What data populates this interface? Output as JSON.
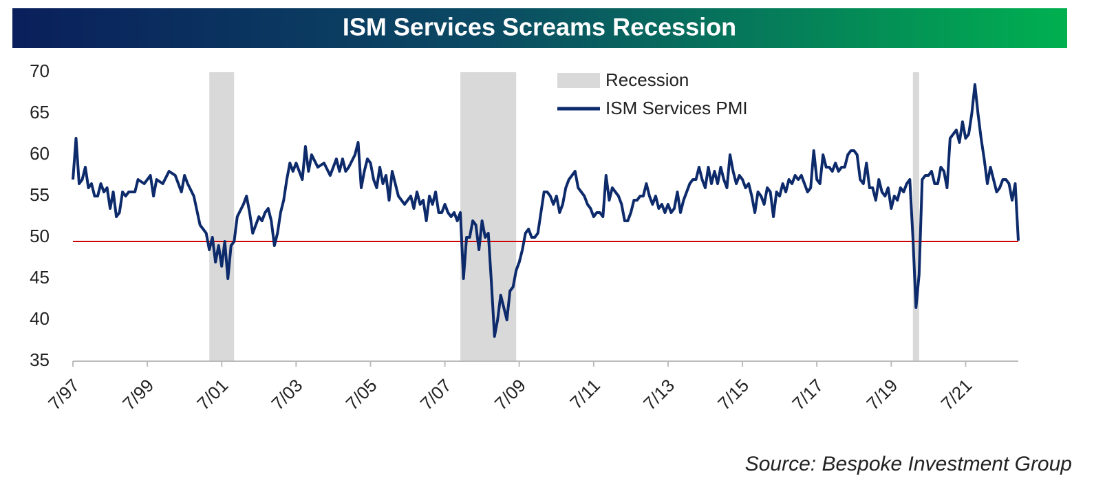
{
  "chart_data": {
    "type": "line",
    "title": "ISM Services Screams Recession",
    "source": "Source: Bespoke Investment Group",
    "x": [
      "7/97",
      "8/97",
      "9/97",
      "10/97",
      "11/97",
      "12/97",
      "1/98",
      "2/98",
      "3/98",
      "4/98",
      "5/98",
      "6/98",
      "7/98",
      "8/98",
      "9/98",
      "10/98",
      "11/98",
      "12/98",
      "1/99",
      "3/99",
      "4/99",
      "6/99",
      "8/99",
      "9/99",
      "10/99",
      "12/99",
      "2/00",
      "4/00",
      "6/00",
      "7/00",
      "8/00",
      "10/00",
      "12/00",
      "2/01",
      "3/01",
      "4/01",
      "5/01",
      "6/01",
      "7/01",
      "8/01",
      "9/01",
      "10/01",
      "11/01",
      "12/01",
      "2/02",
      "3/02",
      "4/02",
      "5/02",
      "6/02",
      "7/02",
      "8/02",
      "9/02",
      "10/02",
      "11/02",
      "12/02",
      "1/03",
      "2/03",
      "3/03",
      "4/03",
      "5/03",
      "6/03",
      "7/03",
      "8/03",
      "9/03",
      "10/03",
      "11/03",
      "12/03",
      "2/04",
      "4/04",
      "6/04",
      "8/04",
      "9/04",
      "10/04",
      "11/04",
      "12/04",
      "2/05",
      "3/05",
      "4/05",
      "5/05",
      "6/05",
      "7/05",
      "8/05",
      "9/05",
      "10/05",
      "11/05",
      "12/05",
      "1/06",
      "2/06",
      "3/06",
      "4/06",
      "5/06",
      "6/06",
      "8/06",
      "9/06",
      "10/06",
      "11/06",
      "12/06",
      "1/07",
      "2/07",
      "3/07",
      "4/07",
      "5/07",
      "6/07",
      "7/07",
      "8/07",
      "9/07",
      "10/07",
      "11/07",
      "12/07",
      "1/08",
      "2/08",
      "3/08",
      "4/08",
      "5/08",
      "6/08",
      "7/08",
      "8/08",
      "9/08",
      "10/08",
      "11/08",
      "12/08",
      "1/09",
      "2/09",
      "3/09",
      "4/09",
      "5/09",
      "6/09",
      "7/09",
      "8/09",
      "9/09",
      "10/09",
      "11/09",
      "12/09",
      "1/10",
      "2/10",
      "3/10",
      "4/10",
      "5/10",
      "6/10",
      "7/10",
      "8/10",
      "9/10",
      "10/10",
      "11/10",
      "12/10",
      "1/11",
      "2/11",
      "3/11",
      "4/11",
      "5/11",
      "6/11",
      "7/11",
      "8/11",
      "9/11",
      "10/11",
      "11/11",
      "12/11",
      "1/12",
      "2/12",
      "3/12",
      "4/12",
      "5/12",
      "6/12",
      "7/12",
      "8/12",
      "9/12",
      "10/12",
      "11/12",
      "12/12",
      "1/13",
      "2/13",
      "3/13",
      "4/13",
      "5/13",
      "6/13",
      "7/13",
      "8/13",
      "9/13",
      "10/13",
      "11/13",
      "12/13",
      "1/14",
      "2/14",
      "3/14",
      "4/14",
      "5/14",
      "6/14",
      "7/14",
      "8/14",
      "9/14",
      "10/14",
      "11/14",
      "12/14",
      "1/15",
      "2/15",
      "3/15",
      "4/15",
      "5/15",
      "6/15",
      "7/15",
      "8/15",
      "9/15",
      "10/15",
      "11/15",
      "12/15",
      "1/16",
      "2/16",
      "3/16",
      "4/16",
      "5/16",
      "6/16",
      "7/16",
      "8/16",
      "9/16",
      "10/16",
      "11/16",
      "12/16",
      "1/17",
      "2/17",
      "3/17",
      "4/17",
      "5/17",
      "6/17",
      "7/17",
      "8/17",
      "9/17",
      "10/17",
      "11/17",
      "12/17",
      "1/18",
      "2/18",
      "3/18",
      "4/18",
      "5/18",
      "6/18",
      "7/18",
      "8/18",
      "9/18",
      "10/18",
      "11/18",
      "12/18",
      "1/19",
      "2/19",
      "3/19",
      "4/19",
      "5/19",
      "6/19",
      "7/19",
      "8/19",
      "9/19",
      "10/19",
      "11/19",
      "12/19",
      "1/20",
      "2/20",
      "3/20",
      "4/20",
      "5/20",
      "6/20",
      "7/20",
      "8/20",
      "9/20",
      "10/20",
      "11/20",
      "12/20",
      "1/21",
      "2/21",
      "3/21",
      "4/21",
      "5/21",
      "6/21",
      "7/21",
      "8/21",
      "9/21",
      "10/21",
      "11/21",
      "12/21",
      "1/22",
      "2/22",
      "3/22",
      "4/22",
      "5/22",
      "6/22",
      "7/22",
      "8/22",
      "9/22",
      "10/22",
      "11/22",
      "12/22"
    ],
    "series": [
      {
        "name": "ISM Services PMI",
        "color": "#0d2a6b",
        "values": [
          57,
          62,
          56.5,
          57,
          58.5,
          56,
          56.5,
          55,
          55,
          56.5,
          55.5,
          56,
          53.5,
          55.5,
          52.5,
          53,
          55.5,
          55,
          55.5,
          55.5,
          57,
          56.5,
          57.5,
          55,
          57,
          56.5,
          58,
          57.5,
          55.5,
          57.5,
          56.5,
          55,
          51.5,
          50.5,
          48.5,
          50,
          47,
          49,
          46.5,
          49.5,
          45,
          49,
          49.5,
          52.5,
          54,
          55,
          53,
          50.5,
          51.5,
          52.5,
          52,
          53,
          53.5,
          52,
          49,
          50.5,
          53,
          54.5,
          57,
          59,
          58,
          59,
          58,
          57,
          61,
          58,
          60,
          58.5,
          59,
          57.5,
          59.5,
          58,
          59.5,
          58,
          58.5,
          60,
          61.5,
          56,
          58,
          59.5,
          59,
          57,
          56,
          58.5,
          56.5,
          57.5,
          54.5,
          58,
          56.5,
          55,
          54.5,
          54,
          55,
          53.5,
          55.5,
          54,
          54.5,
          52,
          55,
          54,
          55.5,
          53,
          53,
          54,
          53,
          52.5,
          53,
          52,
          53,
          45,
          50,
          50,
          52,
          51.5,
          48.5,
          52,
          50,
          50.5,
          44.5,
          38,
          40,
          43,
          41.5,
          40,
          43.5,
          44,
          46,
          47,
          48.5,
          50.5,
          51,
          50,
          50,
          50.5,
          53,
          55.5,
          55.5,
          55,
          54,
          55,
          53,
          54,
          56,
          57,
          57.5,
          58,
          56,
          55.5,
          55,
          54,
          53.5,
          52.5,
          53,
          53,
          52.5,
          57.5,
          54.5,
          56,
          55.5,
          55,
          54,
          52,
          52,
          53,
          54.5,
          54.5,
          55,
          55,
          56.5,
          55,
          54,
          55,
          53.5,
          54,
          53,
          54,
          53,
          53.5,
          55.5,
          53,
          54.5,
          55.5,
          56.5,
          57,
          57,
          58.5,
          57,
          56,
          58.5,
          56.5,
          58,
          56.5,
          58.5,
          57,
          56,
          60,
          58,
          56.5,
          57.5,
          57,
          56,
          56.5,
          55,
          53,
          55.5,
          55,
          54,
          56,
          55.5,
          52.5,
          55.5,
          55,
          56.5,
          55.5,
          57,
          56.5,
          57.5,
          57,
          57.5,
          56.5,
          55.5,
          56,
          60.5,
          57,
          56.5,
          60,
          58.5,
          58.5,
          58,
          59,
          58,
          58.5,
          58.5,
          60,
          60.5,
          60.5,
          60,
          57,
          56.5,
          59,
          56,
          56,
          54.5,
          57,
          55.5,
          55,
          56,
          53.5,
          55,
          54.5,
          56,
          55.5,
          56.5,
          57,
          50,
          41.5,
          45.5,
          57,
          57.5,
          57.5,
          58,
          56.5,
          56.5,
          58.5,
          58,
          56,
          62,
          62.5,
          63,
          61.5,
          64,
          62,
          62.5,
          65,
          68.5,
          65,
          62,
          59.5,
          56.5,
          58.5,
          57,
          55.5,
          56,
          57,
          57,
          56.5,
          54.5,
          56.5,
          49.6
        ]
      }
    ],
    "recession": {
      "name": "Recession",
      "color": "#d9d9d9",
      "periods": [
        {
          "start": "3/01",
          "end": "11/01"
        },
        {
          "start": "12/07",
          "end": "6/09"
        },
        {
          "start": "2/20",
          "end": "4/20"
        }
      ]
    },
    "reference_line": {
      "value": 49.5,
      "color": "#cc0000"
    },
    "xlim": [
      "7/97",
      "12/22"
    ],
    "xticks": [
      "7/97",
      "7/99",
      "7/01",
      "7/03",
      "7/05",
      "7/07",
      "7/09",
      "7/11",
      "7/13",
      "7/15",
      "7/17",
      "7/19",
      "7/21"
    ],
    "ylim": [
      35,
      70
    ],
    "yticks": [
      35,
      40,
      45,
      50,
      55,
      60,
      65,
      70
    ],
    "grid": false
  }
}
